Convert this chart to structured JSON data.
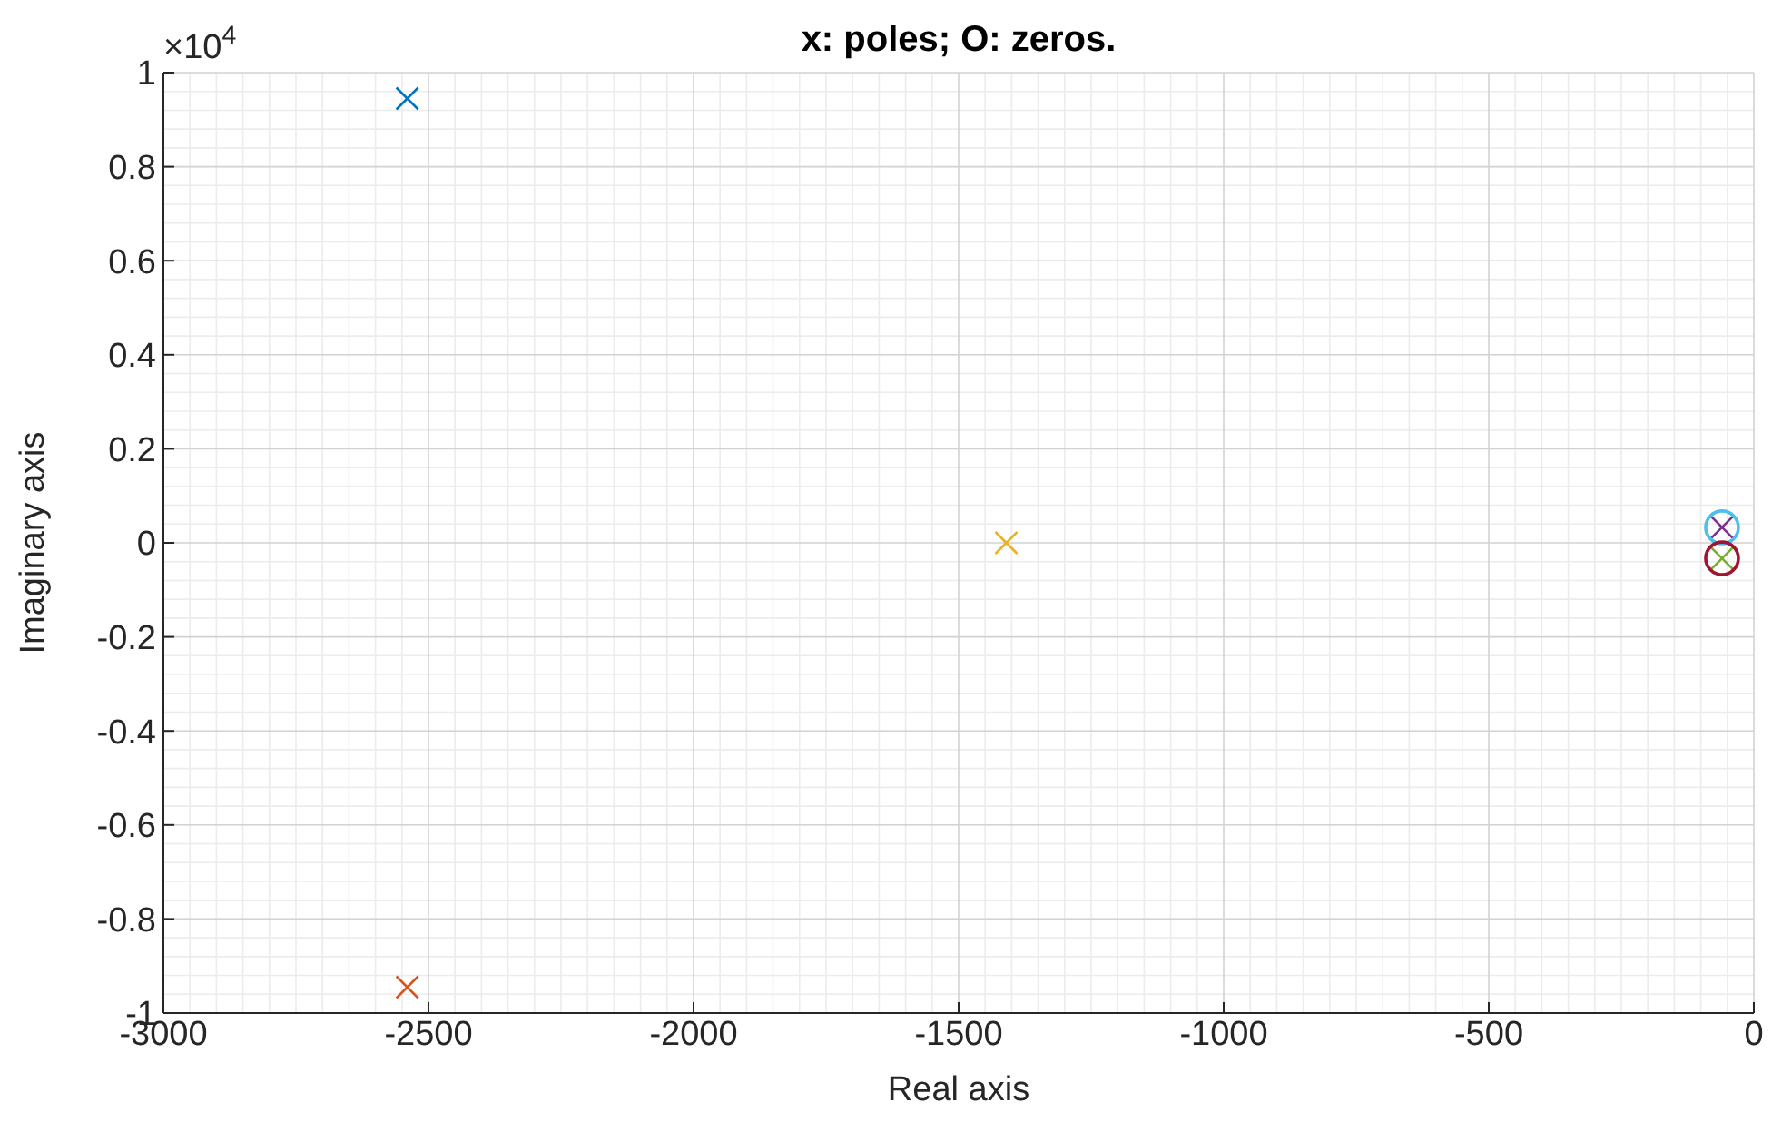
{
  "chart_data": {
    "type": "scatter",
    "title": "x: poles; O: zeros.",
    "xlabel": "Real axis",
    "ylabel": "Imaginary axis",
    "annotations": [
      "×10$^{4}$"
    ],
    "xlim": [
      -3000,
      0
    ],
    "xticks": [
      -3000,
      -2500,
      -2000,
      -1500,
      -1000,
      -500,
      0
    ],
    "ylim": [
      -1,
      1
    ],
    "yticks": [
      -1,
      -0.8,
      -0.6,
      -0.4,
      -0.2,
      0,
      0.2,
      0.4,
      0.6,
      0.8,
      1
    ],
    "grid": true,
    "series": [
      {
        "marker": "cross",
        "color": "#0072bd",
        "x": [
          -2540
        ],
        "values": [
          0.945
        ]
      },
      {
        "marker": "cross",
        "color": "#d95319",
        "x": [
          -2540
        ],
        "values": [
          -0.945
        ]
      },
      {
        "marker": "cross",
        "color": "#edb120",
        "x": [
          -1410
        ],
        "values": [
          0
        ]
      },
      {
        "marker": "cross",
        "color": "#7e2f8e",
        "x": [
          -60
        ],
        "values": [
          0.033
        ]
      },
      {
        "marker": "cross",
        "color": "#77ac30",
        "x": [
          -60
        ],
        "values": [
          -0.033
        ]
      },
      {
        "marker": "circle",
        "color": "#4dbeee",
        "x": [
          -60
        ],
        "values": [
          0.033
        ]
      },
      {
        "marker": "circle",
        "color": "#a2142f",
        "x": [
          -60
        ],
        "values": [
          -0.033
        ]
      }
    ]
  }
}
